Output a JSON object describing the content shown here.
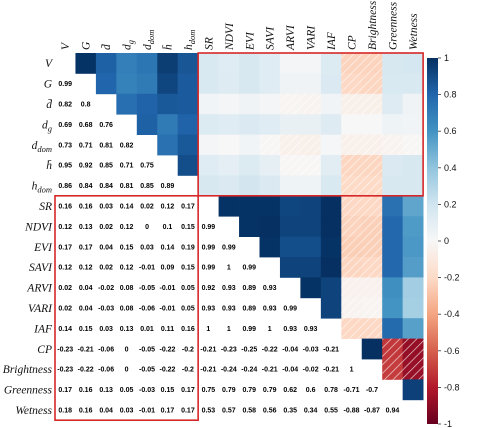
{
  "chart_data": {
    "type": "heatmap",
    "variables": [
      "V",
      "G",
      "d̄",
      "dg",
      "ddom",
      "h̄",
      "hdom",
      "SR",
      "NDVI",
      "EVI",
      "SAVI",
      "ARVI",
      "VARI",
      "IAF",
      "CP",
      "Brightness",
      "Greenness",
      "Wetness"
    ],
    "label_parts": [
      {
        "base": "V",
        "sub": ""
      },
      {
        "base": "G",
        "sub": ""
      },
      {
        "base": "d̄",
        "sub": ""
      },
      {
        "base": "d",
        "sub": "g"
      },
      {
        "base": "d",
        "sub": "dom"
      },
      {
        "base": "h̄",
        "sub": ""
      },
      {
        "base": "h",
        "sub": "dom"
      },
      {
        "base": "SR",
        "sub": ""
      },
      {
        "base": "NDVI",
        "sub": ""
      },
      {
        "base": "EVI",
        "sub": ""
      },
      {
        "base": "SAVI",
        "sub": ""
      },
      {
        "base": "ARVI",
        "sub": ""
      },
      {
        "base": "VARI",
        "sub": ""
      },
      {
        "base": "IAF",
        "sub": ""
      },
      {
        "base": "CP",
        "sub": ""
      },
      {
        "base": "Brightness",
        "sub": ""
      },
      {
        "base": "Greenness",
        "sub": ""
      },
      {
        "base": "Wetness",
        "sub": ""
      }
    ],
    "lower_labels": [
      [],
      [
        "0.99"
      ],
      [
        "0.82",
        "0.8"
      ],
      [
        "0.69",
        "0.68",
        "0.76"
      ],
      [
        "0.73",
        "0.71",
        "0.81",
        "0.82"
      ],
      [
        "0.95",
        "0.92",
        "0.85",
        "0.71",
        "0.75"
      ],
      [
        "0.86",
        "0.84",
        "0.84",
        "0.81",
        "0.85",
        "0.89"
      ],
      [
        "0.16",
        "0.16",
        "0.03",
        "0.14",
        "0.02",
        "0.12",
        "0.17"
      ],
      [
        "0.12",
        "0.13",
        "0.02",
        "0.12",
        "0",
        "0.1",
        "0.15",
        "0.99"
      ],
      [
        "0.17",
        "0.17",
        "0.04",
        "0.15",
        "0.03",
        "0.14",
        "0.19",
        "0.99",
        "0.99"
      ],
      [
        "0.12",
        "0.12",
        "0.02",
        "0.12",
        "-0.01",
        "0.09",
        "0.15",
        "0.99",
        "1",
        "0.99"
      ],
      [
        "0.02",
        "0.04",
        "-0.02",
        "0.08",
        "-0.05",
        "-0.01",
        "0.05",
        "0.92",
        "0.93",
        "0.89",
        "0.93"
      ],
      [
        "0.02",
        "0.04",
        "-0.03",
        "0.08",
        "-0.06",
        "-0.01",
        "0.05",
        "0.93",
        "0.93",
        "0.89",
        "0.93",
        "0.99"
      ],
      [
        "0.14",
        "0.15",
        "0.03",
        "0.13",
        "0.01",
        "0.11",
        "0.16",
        "1",
        "1",
        "0.99",
        "1",
        "0.93",
        "0.93"
      ],
      [
        "-0.23",
        "-0.21",
        "-0.06",
        "0",
        "-0.05",
        "-0.22",
        "-0.2",
        "-0.21",
        "-0.23",
        "-0.25",
        "-0.22",
        "-0.04",
        "-0.03",
        "-0.21"
      ],
      [
        "-0.23",
        "-0.22",
        "-0.06",
        "0",
        "-0.05",
        "-0.22",
        "-0.2",
        "-0.21",
        "-0.24",
        "-0.24",
        "-0.21",
        "-0.04",
        "-0.02",
        "-0.21",
        "1"
      ],
      [
        "0.17",
        "0.16",
        "0.13",
        "0.05",
        "-0.03",
        "0.15",
        "0.17",
        "0.75",
        "0.79",
        "0.79",
        "0.79",
        "0.62",
        "0.6",
        "0.78",
        "-0.71",
        "-0.7"
      ],
      [
        "0.18",
        "0.16",
        "0.04",
        "0.03",
        "-0.01",
        "0.17",
        "0.17",
        "0.53",
        "0.57",
        "0.58",
        "0.56",
        "0.35",
        "0.34",
        "0.55",
        "-0.88",
        "-0.87",
        "0.94"
      ]
    ],
    "colorbar": {
      "min": -1,
      "max": 1,
      "ticks": [
        "1",
        "0.8",
        "0.6",
        "0.4",
        "0.2",
        "0",
        "-0.2",
        "-0.4",
        "-0.6",
        "-0.8",
        "-1"
      ]
    },
    "highlight_boxes": [
      "upper-right block: rows V to h_dom, columns SR to Wetness",
      "lower-left block: rows SR to Wetness, columns V to h_dom"
    ],
    "colors": {
      "highlight": "#d62728",
      "positive": "#053061",
      "neutral": "#f7f7f7",
      "negative": "#67001f"
    }
  }
}
